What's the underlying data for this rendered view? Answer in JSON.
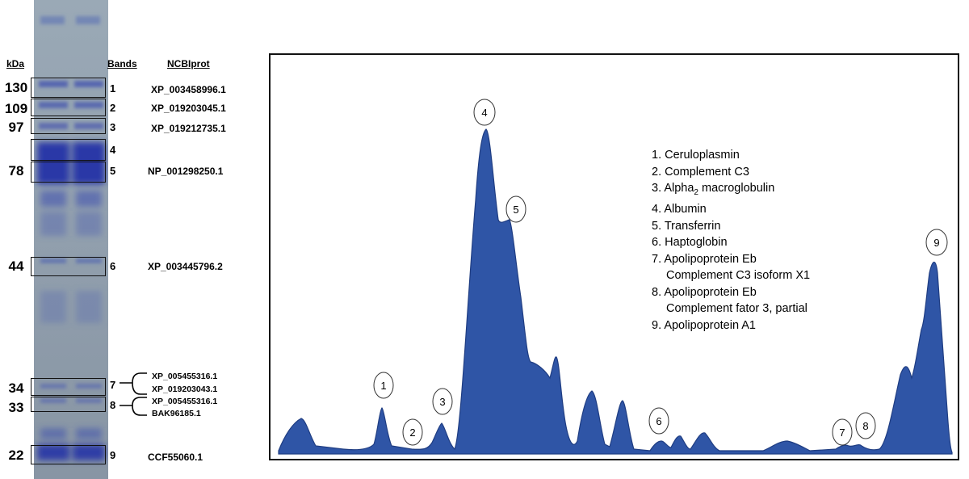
{
  "headers": {
    "kda": "kDa",
    "bands": "Bands",
    "ncbi": "NCBIprot"
  },
  "kda_markers": [
    {
      "label": "130"
    },
    {
      "label": "109"
    },
    {
      "label": "97"
    },
    {
      "label": "78"
    },
    {
      "label": "44"
    },
    {
      "label": "34"
    },
    {
      "label": "33"
    },
    {
      "label": "22"
    }
  ],
  "bands": [
    "1",
    "2",
    "3",
    "4",
    "5",
    "6",
    "7",
    "8",
    "9"
  ],
  "accessions": {
    "b1": "XP_003458996.1",
    "b2": "XP_019203045.1",
    "b3": "XP_019212735.1",
    "b5": "NP_001298250.1",
    "b6": "XP_003445796.2",
    "b7a": "XP_005455316.1",
    "b7b": "XP_019203043.1",
    "b8a": "XP_005455316.1",
    "b8b": "BAK96185.1",
    "b9": "CCF55060.1"
  },
  "peak_labels": [
    "1",
    "2",
    "3",
    "4",
    "5",
    "6",
    "7",
    "8",
    "9"
  ],
  "legend": {
    "l1": "1. Ceruloplasmin",
    "l2": "2. Complement C3",
    "l3_pre": "3. Alpha",
    "l3_sub": "2",
    "l3_post": " macroglobulin",
    "l4": "4. Albumin",
    "l5": "5. Transferrin",
    "l6": "6. Haptoglobin",
    "l7a": "7. Apolipoprotein Eb",
    "l7b": "Complement C3 isoform X1",
    "l8a": "8. Apolipoprotein Eb",
    "l8b": "Complement fator 3, partial",
    "l9": "9. Apolipoprotein A1"
  },
  "colors": {
    "gel_bg": "#8e9eac",
    "band": "#2a38a8",
    "peak_fill": "#2f55a6",
    "peak_edge": "#1f3d82"
  }
}
